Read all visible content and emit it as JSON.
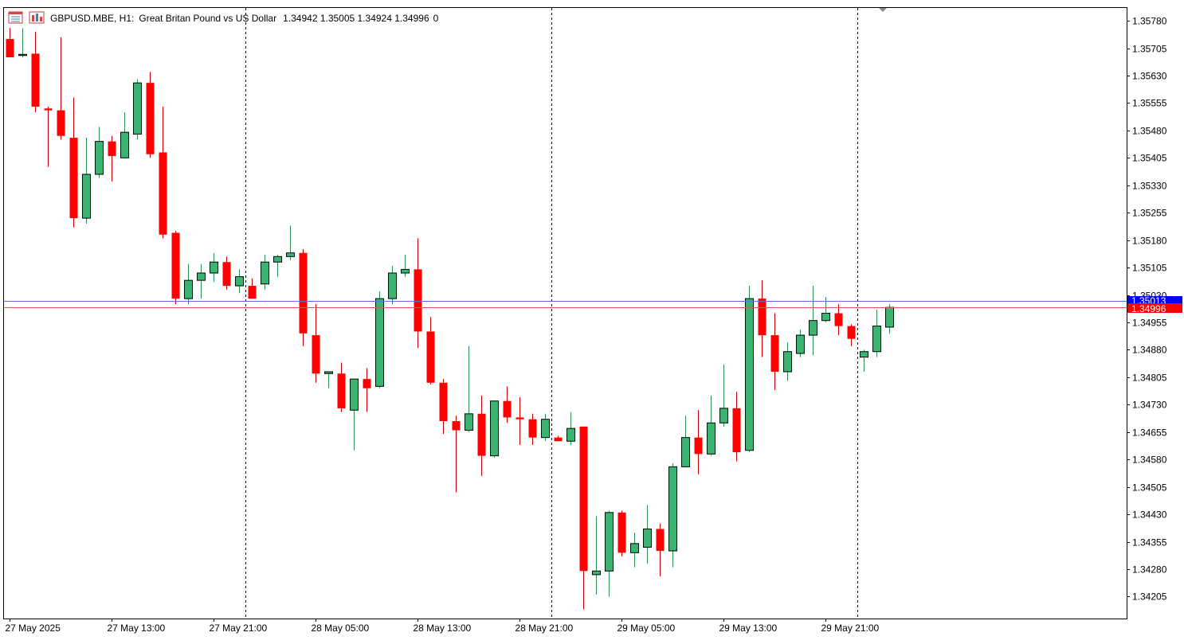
{
  "header": {
    "symbol": "GBPUSD.MBE, H1:",
    "description": "Great Britan Pound vs US Dollar",
    "ohlc": "1.34942 1.35005 1.34924 1.34996",
    "extra": "0"
  },
  "icons": [
    "chart-menu-icon",
    "timeframe-icon"
  ],
  "colors": {
    "bull": "#3cb371",
    "bear": "#ff0000",
    "candle_border": "#000000",
    "ask_tag": "#0000ff",
    "bid_tag": "#ff0000"
  },
  "price_tags": {
    "ask": "1.35013",
    "bid": "1.34996"
  },
  "chart_data": {
    "type": "candlestick",
    "symbol": "GBPUSD.MBE",
    "timeframe": "H1",
    "ylim": [
      1.34145,
      1.35815
    ],
    "y_ticks": [
      "1.35780",
      "1.35705",
      "1.35630",
      "1.35555",
      "1.35480",
      "1.35405",
      "1.35330",
      "1.35255",
      "1.35180",
      "1.35105",
      "1.35030",
      "1.34955",
      "1.34880",
      "1.34805",
      "1.34730",
      "1.34655",
      "1.34580",
      "1.34505",
      "1.34430",
      "1.34355",
      "1.34280",
      "1.34205"
    ],
    "x_ticks": [
      {
        "label": "27 May 2025",
        "index": 0
      },
      {
        "label": "27 May 13:00",
        "index": 8
      },
      {
        "label": "27 May 21:00",
        "index": 16
      },
      {
        "label": "28 May 05:00",
        "index": 24
      },
      {
        "label": "28 May 13:00",
        "index": 32
      },
      {
        "label": "28 May 21:00",
        "index": 40
      },
      {
        "label": "29 May 05:00",
        "index": 48
      },
      {
        "label": "29 May 13:00",
        "index": 56
      },
      {
        "label": "29 May 21:00",
        "index": 64
      }
    ],
    "period_separators": [
      18.5,
      42.5,
      66.5
    ],
    "bid": 1.34996,
    "ask": 1.35013,
    "candles": [
      {
        "o": 1.3573,
        "h": 1.3576,
        "l": 1.3569,
        "c": 1.3568
      },
      {
        "o": 1.35685,
        "h": 1.3576,
        "l": 1.3568,
        "c": 1.35688
      },
      {
        "o": 1.3569,
        "h": 1.3575,
        "l": 1.3553,
        "c": 1.35545
      },
      {
        "o": 1.3554,
        "h": 1.35545,
        "l": 1.3538,
        "c": 1.35535
      },
      {
        "o": 1.35535,
        "h": 1.35735,
        "l": 1.35455,
        "c": 1.35465
      },
      {
        "o": 1.3546,
        "h": 1.3557,
        "l": 1.35215,
        "c": 1.3524
      },
      {
        "o": 1.3524,
        "h": 1.3546,
        "l": 1.35225,
        "c": 1.3536
      },
      {
        "o": 1.3536,
        "h": 1.3549,
        "l": 1.3535,
        "c": 1.3545
      },
      {
        "o": 1.3545,
        "h": 1.35465,
        "l": 1.3534,
        "c": 1.3541
      },
      {
        "o": 1.35405,
        "h": 1.3553,
        "l": 1.35405,
        "c": 1.35475
      },
      {
        "o": 1.3547,
        "h": 1.3562,
        "l": 1.35455,
        "c": 1.3561
      },
      {
        "o": 1.3561,
        "h": 1.3564,
        "l": 1.35405,
        "c": 1.35415
      },
      {
        "o": 1.3542,
        "h": 1.35545,
        "l": 1.35185,
        "c": 1.35195
      },
      {
        "o": 1.352,
        "h": 1.35205,
        "l": 1.35005,
        "c": 1.3502
      },
      {
        "o": 1.3502,
        "h": 1.35115,
        "l": 1.35005,
        "c": 1.3507
      },
      {
        "o": 1.3507,
        "h": 1.35115,
        "l": 1.3502,
        "c": 1.3509
      },
      {
        "o": 1.3509,
        "h": 1.35145,
        "l": 1.35065,
        "c": 1.3512
      },
      {
        "o": 1.3512,
        "h": 1.35135,
        "l": 1.35045,
        "c": 1.35055
      },
      {
        "o": 1.35055,
        "h": 1.351,
        "l": 1.35035,
        "c": 1.3508
      },
      {
        "o": 1.35055,
        "h": 1.35075,
        "l": 1.3502,
        "c": 1.3502
      },
      {
        "o": 1.3506,
        "h": 1.3514,
        "l": 1.35045,
        "c": 1.3512
      },
      {
        "o": 1.3512,
        "h": 1.3514,
        "l": 1.3508,
        "c": 1.35135
      },
      {
        "o": 1.35135,
        "h": 1.3522,
        "l": 1.35125,
        "c": 1.35145
      },
      {
        "o": 1.35145,
        "h": 1.35155,
        "l": 1.3489,
        "c": 1.34925
      },
      {
        "o": 1.3492,
        "h": 1.35005,
        "l": 1.3479,
        "c": 1.34815
      },
      {
        "o": 1.34815,
        "h": 1.3482,
        "l": 1.34775,
        "c": 1.3482
      },
      {
        "o": 1.34815,
        "h": 1.34845,
        "l": 1.3471,
        "c": 1.3472
      },
      {
        "o": 1.34715,
        "h": 1.348,
        "l": 1.34605,
        "c": 1.348
      },
      {
        "o": 1.348,
        "h": 1.3483,
        "l": 1.3471,
        "c": 1.34775
      },
      {
        "o": 1.3478,
        "h": 1.3504,
        "l": 1.34775,
        "c": 1.3502
      },
      {
        "o": 1.3502,
        "h": 1.3511,
        "l": 1.35005,
        "c": 1.3509
      },
      {
        "o": 1.3509,
        "h": 1.3514,
        "l": 1.3508,
        "c": 1.351
      },
      {
        "o": 1.351,
        "h": 1.35185,
        "l": 1.34885,
        "c": 1.3493
      },
      {
        "o": 1.3493,
        "h": 1.3497,
        "l": 1.34785,
        "c": 1.3479
      },
      {
        "o": 1.3479,
        "h": 1.348,
        "l": 1.3465,
        "c": 1.34685
      },
      {
        "o": 1.34685,
        "h": 1.347,
        "l": 1.3449,
        "c": 1.3466
      },
      {
        "o": 1.3466,
        "h": 1.3489,
        "l": 1.34655,
        "c": 1.34705
      },
      {
        "o": 1.34705,
        "h": 1.34755,
        "l": 1.34535,
        "c": 1.3459
      },
      {
        "o": 1.3459,
        "h": 1.3474,
        "l": 1.34585,
        "c": 1.3474
      },
      {
        "o": 1.3474,
        "h": 1.3478,
        "l": 1.3468,
        "c": 1.34695
      },
      {
        "o": 1.34695,
        "h": 1.3475,
        "l": 1.3462,
        "c": 1.3469
      },
      {
        "o": 1.3469,
        "h": 1.34705,
        "l": 1.3462,
        "c": 1.3464
      },
      {
        "o": 1.3464,
        "h": 1.34705,
        "l": 1.3463,
        "c": 1.3469
      },
      {
        "o": 1.3464,
        "h": 1.34645,
        "l": 1.3463,
        "c": 1.3463
      },
      {
        "o": 1.3463,
        "h": 1.3471,
        "l": 1.3462,
        "c": 1.34665
      },
      {
        "o": 1.3467,
        "h": 1.3467,
        "l": 1.3417,
        "c": 1.34275
      },
      {
        "o": 1.34265,
        "h": 1.34425,
        "l": 1.3421,
        "c": 1.34275
      },
      {
        "o": 1.34275,
        "h": 1.3444,
        "l": 1.34205,
        "c": 1.34435
      },
      {
        "o": 1.34435,
        "h": 1.3444,
        "l": 1.34315,
        "c": 1.34325
      },
      {
        "o": 1.34325,
        "h": 1.3438,
        "l": 1.34285,
        "c": 1.3435
      },
      {
        "o": 1.3434,
        "h": 1.34455,
        "l": 1.34295,
        "c": 1.3439
      },
      {
        "o": 1.3439,
        "h": 1.34405,
        "l": 1.3426,
        "c": 1.3433
      },
      {
        "o": 1.3433,
        "h": 1.3457,
        "l": 1.34285,
        "c": 1.3456
      },
      {
        "o": 1.3456,
        "h": 1.347,
        "l": 1.3456,
        "c": 1.3464
      },
      {
        "o": 1.3464,
        "h": 1.34715,
        "l": 1.3454,
        "c": 1.34595
      },
      {
        "o": 1.34595,
        "h": 1.34755,
        "l": 1.3459,
        "c": 1.3468
      },
      {
        "o": 1.3468,
        "h": 1.3484,
        "l": 1.3467,
        "c": 1.3472
      },
      {
        "o": 1.3472,
        "h": 1.34765,
        "l": 1.34575,
        "c": 1.346
      },
      {
        "o": 1.34605,
        "h": 1.35055,
        "l": 1.346,
        "c": 1.3502
      },
      {
        "o": 1.3502,
        "h": 1.3507,
        "l": 1.3486,
        "c": 1.3492
      },
      {
        "o": 1.3492,
        "h": 1.3498,
        "l": 1.3477,
        "c": 1.3482
      },
      {
        "o": 1.3482,
        "h": 1.349,
        "l": 1.34795,
        "c": 1.34875
      },
      {
        "o": 1.3487,
        "h": 1.34935,
        "l": 1.3486,
        "c": 1.3492
      },
      {
        "o": 1.3492,
        "h": 1.35055,
        "l": 1.34865,
        "c": 1.3496
      },
      {
        "o": 1.3496,
        "h": 1.35025,
        "l": 1.34955,
        "c": 1.3498
      },
      {
        "o": 1.3498,
        "h": 1.35005,
        "l": 1.3492,
        "c": 1.34945
      },
      {
        "o": 1.34945,
        "h": 1.3495,
        "l": 1.3489,
        "c": 1.3491
      },
      {
        "o": 1.3486,
        "h": 1.3488,
        "l": 1.3482,
        "c": 1.34875
      },
      {
        "o": 1.34875,
        "h": 1.3499,
        "l": 1.3486,
        "c": 1.34945
      },
      {
        "o": 1.34942,
        "h": 1.35005,
        "l": 1.34924,
        "c": 1.34996
      }
    ]
  }
}
